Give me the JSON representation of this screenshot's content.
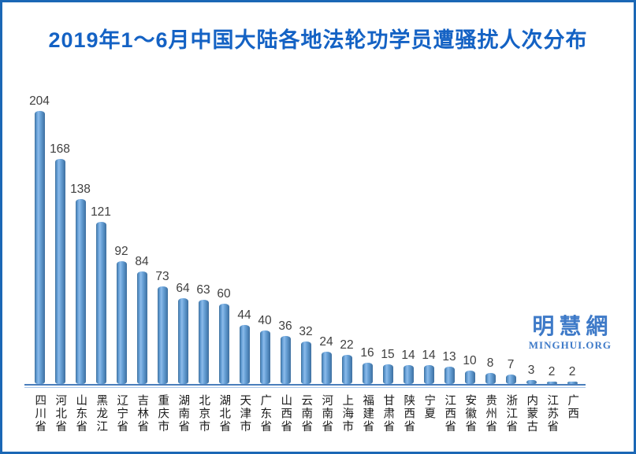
{
  "title": "2019年1～6月中国大陆各地法轮功学员遭骚扰人次分布",
  "logo": {
    "name": "明慧網",
    "site": "MINGHUI.ORG"
  },
  "colors": {
    "frame_border": "#1b67b5",
    "title_text": "#1462c4",
    "bar_fill": "#5b97cf",
    "bar_edge": "#41719c",
    "axis_line": "#4a7ebc",
    "value_label": "#3f3f3f",
    "logo_blue": "#3e7ac8"
  },
  "chart_data": {
    "type": "bar",
    "title": "2019年1～6月中国大陆各地法轮功学员遭骚扰人次分布",
    "xlabel": "",
    "ylabel": "",
    "ylim": [
      0,
      220
    ],
    "grid": false,
    "legend": false,
    "value_labels": true,
    "categories": [
      "四川省",
      "河北省",
      "山东省",
      "黑龙江",
      "辽宁省",
      "吉林省",
      "重庆市",
      "湖南省",
      "北京市",
      "湖北省",
      "天津市",
      "广东省",
      "山西省",
      "云南省",
      "河南省",
      "上海市",
      "福建省",
      "甘肃省",
      "陕西省",
      "宁夏",
      "江西省",
      "安徽省",
      "贵州省",
      "浙江省",
      "内蒙古",
      "江苏省",
      "广西"
    ],
    "values": [
      204,
      168,
      138,
      121,
      92,
      84,
      73,
      64,
      63,
      60,
      44,
      40,
      36,
      32,
      24,
      22,
      16,
      15,
      14,
      14,
      13,
      10,
      8,
      7,
      3,
      2,
      2
    ]
  }
}
